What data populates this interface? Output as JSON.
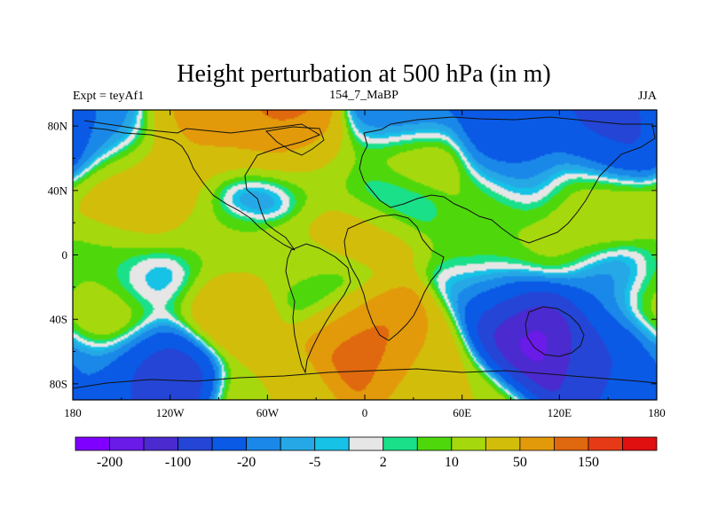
{
  "chart_data": {
    "type": "heatmap",
    "title": "Height perturbation at 500 hPa (in m)",
    "subtitle_left": "Expt = teyAf1",
    "subtitle_center": "154_7_MaBP",
    "subtitle_right": "JJA",
    "x_ticks": [
      "180",
      "120W",
      "60W",
      "0",
      "60E",
      "120E",
      "180"
    ],
    "x_tick_values": [
      -180,
      -120,
      -60,
      0,
      60,
      120,
      180
    ],
    "y_ticks": [
      "80N",
      "40N",
      "0",
      "40S",
      "80S"
    ],
    "y_tick_values": [
      80,
      40,
      0,
      -40,
      -80
    ],
    "xlim": [
      -180,
      180
    ],
    "ylim": [
      -90,
      90
    ],
    "colorbar": {
      "levels": [
        -200,
        -150,
        -100,
        -50,
        -20,
        -10,
        -5,
        -2,
        2,
        5,
        10,
        20,
        50,
        100,
        150,
        200
      ],
      "labels": [
        "-200",
        "-100",
        "-20",
        "-5",
        "2",
        "10",
        "50",
        "150"
      ],
      "colors": [
        "#7f00ff",
        "#6a1be8",
        "#4b2ad0",
        "#2545d6",
        "#0a5ae6",
        "#1a88e8",
        "#27a8e6",
        "#16c2e6",
        "#e6e6e6",
        "#1ae08a",
        "#4ed80c",
        "#a6d80e",
        "#d2be0a",
        "#e29a0a",
        "#e0680e",
        "#e63a16",
        "#e01010"
      ]
    },
    "features": [
      {
        "lon": -100,
        "lat": 80,
        "value": 75
      },
      {
        "lon": -60,
        "lat": 75,
        "value": 130
      },
      {
        "lon": -85,
        "lat": 65,
        "value": 40
      },
      {
        "lon": -130,
        "lat": 55,
        "value": 30
      },
      {
        "lon": -70,
        "lat": 50,
        "value": -30
      },
      {
        "lon": -130,
        "lat": 40,
        "value": 30
      },
      {
        "lon": -35,
        "lat": 55,
        "value": 15
      },
      {
        "lon": 30,
        "lat": 58,
        "value": 40
      },
      {
        "lon": 90,
        "lat": 75,
        "value": -40
      },
      {
        "lon": 25,
        "lat": 80,
        "value": -25
      },
      {
        "lon": 150,
        "lat": 68,
        "value": -60
      },
      {
        "lon": 100,
        "lat": 50,
        "value": -25
      },
      {
        "lon": 130,
        "lat": 45,
        "value": 20
      },
      {
        "lon": 80,
        "lat": 35,
        "value": 15
      },
      {
        "lon": 20,
        "lat": 40,
        "value": -15
      },
      {
        "lon": -150,
        "lat": 75,
        "value": -20
      },
      {
        "lon": -140,
        "lat": 30,
        "value": 25
      },
      {
        "lon": 150,
        "lat": 30,
        "value": 20
      },
      {
        "lon": 0,
        "lat": 15,
        "value": 30
      },
      {
        "lon": -90,
        "lat": 10,
        "value": 12
      },
      {
        "lon": 120,
        "lat": 5,
        "value": 15
      },
      {
        "lon": 75,
        "lat": 8,
        "value": 8
      },
      {
        "lon": -160,
        "lat": -5,
        "value": 8
      },
      {
        "lon": -40,
        "lat": -5,
        "value": 18
      },
      {
        "lon": -130,
        "lat": -22,
        "value": -12
      },
      {
        "lon": 150,
        "lat": -20,
        "value": -20
      },
      {
        "lon": 80,
        "lat": -25,
        "value": -8
      },
      {
        "lon": -20,
        "lat": -30,
        "value": -10
      },
      {
        "lon": -90,
        "lat": -40,
        "value": 50
      },
      {
        "lon": -150,
        "lat": -45,
        "value": 35
      },
      {
        "lon": 0,
        "lat": -50,
        "value": 140
      },
      {
        "lon": 40,
        "lat": -60,
        "value": 40
      },
      {
        "lon": 100,
        "lat": -48,
        "value": -180
      },
      {
        "lon": 150,
        "lat": -55,
        "value": -60
      },
      {
        "lon": 175,
        "lat": -35,
        "value": 25
      },
      {
        "lon": -125,
        "lat": -65,
        "value": -90
      },
      {
        "lon": -170,
        "lat": -70,
        "value": -20
      },
      {
        "lon": 60,
        "lat": -80,
        "value": 20
      },
      {
        "lon": -60,
        "lat": -78,
        "value": 20
      }
    ]
  }
}
